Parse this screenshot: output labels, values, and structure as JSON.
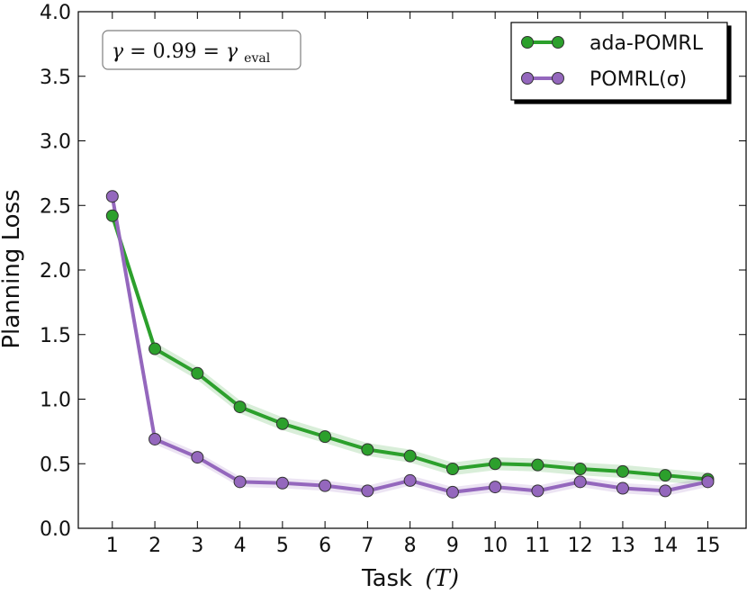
{
  "chart_data": {
    "type": "line",
    "xlabel": "Task",
    "xlabel_var": "(T)",
    "ylabel": "Planning Loss",
    "xlim": [
      0.2,
      15.9
    ],
    "ylim": [
      0.0,
      4.0
    ],
    "x": [
      1,
      2,
      3,
      4,
      5,
      6,
      7,
      8,
      9,
      10,
      11,
      12,
      13,
      14,
      15
    ],
    "x_tick_labels": [
      "1",
      "2",
      "3",
      "4",
      "5",
      "6",
      "7",
      "8",
      "9",
      "10",
      "11",
      "12",
      "13",
      "14",
      "15"
    ],
    "y_tick_labels": [
      "0.0",
      "0.5",
      "1.0",
      "1.5",
      "2.0",
      "2.5",
      "3.0",
      "3.5",
      "4.0"
    ],
    "y_ticks": [
      0.0,
      0.5,
      1.0,
      1.5,
      2.0,
      2.5,
      3.0,
      3.5,
      4.0
    ],
    "grid": false,
    "legend_position": "top-right",
    "series": [
      {
        "name": "ada-POMRL",
        "color": "#2ca02c",
        "shade": "#2ca02c",
        "values": [
          2.42,
          1.39,
          1.2,
          0.94,
          0.81,
          0.71,
          0.61,
          0.56,
          0.46,
          0.5,
          0.49,
          0.46,
          0.44,
          0.41,
          0.38
        ],
        "band": 0.05
      },
      {
        "name": "POMRL(σ)",
        "color": "#9467bd",
        "shade": "#9467bd",
        "values": [
          2.57,
          0.69,
          0.55,
          0.36,
          0.35,
          0.33,
          0.29,
          0.37,
          0.28,
          0.32,
          0.29,
          0.36,
          0.31,
          0.29,
          0.36
        ],
        "band": 0.04
      }
    ],
    "annotation": {
      "text_parts": [
        "γ",
        " = 0.99 = ",
        "γ",
        "eval"
      ]
    }
  }
}
